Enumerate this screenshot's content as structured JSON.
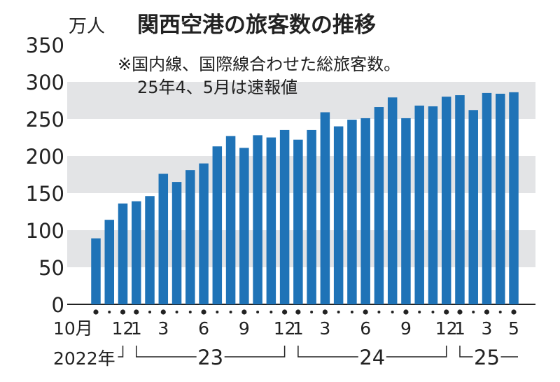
{
  "chart_data": {
    "type": "bar",
    "title": "関西空港の旅客数の推移",
    "unit": "万人",
    "note_line1": "※国内線、国際線合わせた総旅客数。",
    "note_line2": "25年4、5月は速報値",
    "ylim": [
      0,
      350
    ],
    "y_ticks": [
      0,
      50,
      100,
      150,
      200,
      250,
      300,
      350
    ],
    "grid": "alternating horizontal bands",
    "bar_color": "#1f73b7",
    "band_color": "#e3e4e6",
    "values": [
      89,
      114,
      136,
      139,
      146,
      176,
      165,
      181,
      190,
      213,
      227,
      211,
      228,
      225,
      235,
      222,
      235,
      259,
      240,
      249,
      251,
      266,
      279,
      251,
      268,
      267,
      280,
      282,
      262,
      285,
      284,
      286
    ],
    "x_tick_labels": [
      {
        "index": 0,
        "text": "10月"
      },
      {
        "index": 2,
        "text": "12"
      },
      {
        "index": 3,
        "text": "1"
      },
      {
        "index": 5,
        "text": "3"
      },
      {
        "index": 8,
        "text": "6"
      },
      {
        "index": 11,
        "text": "9"
      },
      {
        "index": 14,
        "text": "12"
      },
      {
        "index": 15,
        "text": "1"
      },
      {
        "index": 17,
        "text": "3"
      },
      {
        "index": 20,
        "text": "6"
      },
      {
        "index": 23,
        "text": "9"
      },
      {
        "index": 26,
        "text": "12"
      },
      {
        "index": 27,
        "text": "1"
      },
      {
        "index": 29,
        "text": "3"
      },
      {
        "index": 31,
        "text": "5"
      }
    ],
    "big_dot_indices": [
      0,
      2,
      3,
      5,
      8,
      11,
      14,
      15,
      17,
      20,
      23,
      26,
      27,
      29,
      31
    ],
    "year_groups": [
      {
        "label": "2022年",
        "start": 0,
        "end": 2
      },
      {
        "label": "23",
        "start": 3,
        "end": 14
      },
      {
        "label": "24",
        "start": 15,
        "end": 26
      },
      {
        "label": "25",
        "start": 27,
        "end": 31
      }
    ]
  }
}
